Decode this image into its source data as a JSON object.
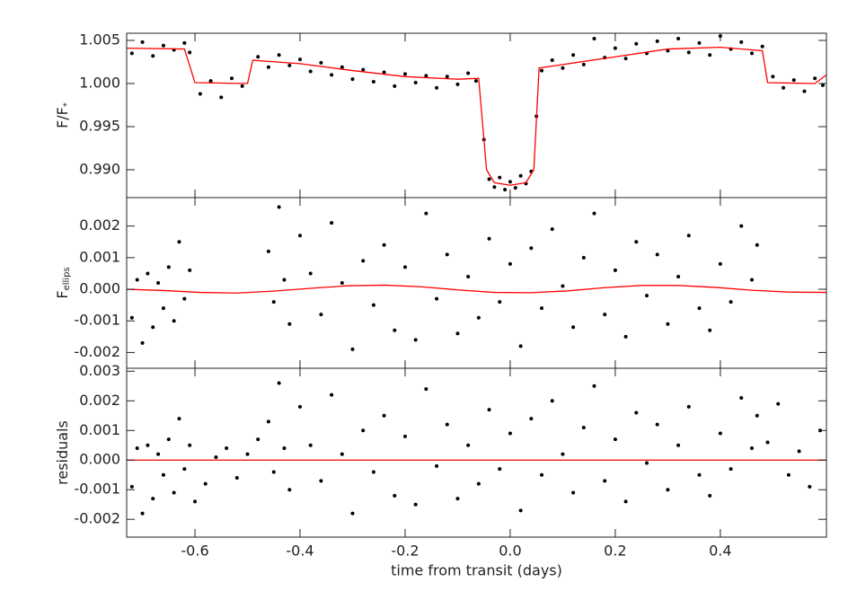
{
  "chart_data": [
    {
      "type": "scatter",
      "ylabel": "F/F",
      "ylabel_sub": "*",
      "xlim": [
        -0.73,
        0.602
      ],
      "ylim": [
        0.98677,
        1.00583
      ],
      "yticks": [
        1.005,
        {
          "value": 1,
          "label": "1.000"
        },
        0.995,
        {
          "value": 0.99,
          "label": "0.990"
        }
      ],
      "series": [
        {
          "style": "points",
          "color": "#000000",
          "x": [
            -0.72,
            -0.7,
            -0.68,
            -0.66,
            -0.64,
            -0.62,
            -0.61,
            -0.59,
            -0.57,
            -0.55,
            -0.53,
            -0.51,
            -0.48,
            -0.46,
            -0.44,
            -0.42,
            -0.4,
            -0.38,
            -0.36,
            -0.34,
            -0.32,
            -0.3,
            -0.28,
            -0.26,
            -0.24,
            -0.22,
            -0.2,
            -0.18,
            -0.16,
            -0.14,
            -0.12,
            -0.1,
            -0.08,
            -0.065,
            -0.05,
            -0.04,
            -0.03,
            -0.02,
            -0.01,
            0.0,
            0.01,
            0.02,
            0.03,
            0.04,
            0.05,
            0.06,
            0.08,
            0.1,
            0.12,
            0.14,
            0.16,
            0.18,
            0.2,
            0.22,
            0.24,
            0.26,
            0.28,
            0.3,
            0.32,
            0.34,
            0.36,
            0.38,
            0.4,
            0.42,
            0.44,
            0.46,
            0.48,
            0.5,
            0.52,
            0.54,
            0.56,
            0.58,
            0.595
          ],
          "values": [
            1.0035,
            1.0048,
            1.0032,
            1.0044,
            1.0039,
            1.0047,
            1.0036,
            0.9988,
            1.0003,
            0.9984,
            1.0006,
            0.9997,
            1.0031,
            1.0019,
            1.0033,
            1.0021,
            1.0028,
            1.0014,
            1.0024,
            1.001,
            1.0019,
            1.0005,
            1.0016,
            1.0002,
            1.0013,
            0.9997,
            1.0011,
            1.0001,
            1.0009,
            0.9995,
            1.0008,
            0.9999,
            1.0012,
            1.0003,
            0.9935,
            0.9889,
            0.988,
            0.9891,
            0.9877,
            0.9886,
            0.9879,
            0.9893,
            0.9884,
            0.9898,
            0.9962,
            1.0015,
            1.0027,
            1.0018,
            1.0033,
            1.0022,
            1.0052,
            1.003,
            1.0041,
            1.0029,
            1.0046,
            1.0035,
            1.0049,
            1.0038,
            1.0052,
            1.0036,
            1.0047,
            1.0033,
            1.0055,
            1.004,
            1.0048,
            1.0035,
            1.0043,
            1.0008,
            0.9995,
            1.0004,
            0.9991,
            1.0006,
            0.9998
          ]
        },
        {
          "style": "line",
          "color": "#ff0000",
          "x": [
            -0.73,
            -0.62,
            -0.6,
            -0.5,
            -0.49,
            -0.4,
            -0.3,
            -0.2,
            -0.1,
            -0.06,
            -0.045,
            -0.03,
            0.0,
            0.03,
            0.045,
            0.055,
            0.1,
            0.2,
            0.3,
            0.4,
            0.48,
            0.49,
            0.58,
            0.602
          ],
          "values": [
            1.0041,
            1.004,
            1.0001,
            1.0,
            1.0027,
            1.0023,
            1.0015,
            1.0008,
            1.0005,
            1.0006,
            0.99,
            0.9885,
            0.9882,
            0.9885,
            0.99,
            1.0018,
            1.0022,
            1.0031,
            1.004,
            1.0042,
            1.0038,
            1.0001,
            1.0,
            1.001
          ]
        }
      ]
    },
    {
      "type": "scatter",
      "ylabel": "F",
      "ylabel_sub": "ellips",
      "xlim": [
        -0.73,
        0.602
      ],
      "ylim": [
        -0.0025,
        0.0029
      ],
      "yticks": [
        0.002,
        0.001,
        {
          "value": 0,
          "label": "0.000"
        },
        -0.001,
        -0.002
      ],
      "series": [
        {
          "style": "points",
          "color": "#000000",
          "x": [
            -0.72,
            -0.71,
            -0.7,
            -0.69,
            -0.68,
            -0.67,
            -0.66,
            -0.65,
            -0.64,
            -0.63,
            -0.62,
            -0.61,
            -0.46,
            -0.45,
            -0.44,
            -0.43,
            -0.42,
            -0.4,
            -0.38,
            -0.36,
            -0.34,
            -0.32,
            -0.3,
            -0.28,
            -0.26,
            -0.24,
            -0.22,
            -0.2,
            -0.18,
            -0.16,
            -0.14,
            -0.12,
            -0.1,
            -0.08,
            -0.06,
            -0.04,
            -0.02,
            0.0,
            0.02,
            0.04,
            0.06,
            0.08,
            0.1,
            0.12,
            0.14,
            0.16,
            0.18,
            0.2,
            0.22,
            0.24,
            0.26,
            0.28,
            0.3,
            0.32,
            0.34,
            0.36,
            0.38,
            0.4,
            0.42,
            0.44,
            0.46,
            0.47
          ],
          "values": [
            -0.0009,
            0.0003,
            -0.0017,
            0.0005,
            -0.0012,
            0.0002,
            -0.0006,
            0.0007,
            -0.001,
            0.0015,
            -0.0003,
            0.0006,
            0.0012,
            -0.0004,
            0.0026,
            0.0003,
            -0.0011,
            0.0017,
            0.0005,
            -0.0008,
            0.0021,
            0.0002,
            -0.0019,
            0.0009,
            -0.0005,
            0.0014,
            -0.0013,
            0.0007,
            -0.0016,
            0.0024,
            -0.0003,
            0.0011,
            -0.0014,
            0.0004,
            -0.0009,
            0.0016,
            -0.0004,
            0.0008,
            -0.0018,
            0.0013,
            -0.0006,
            0.0019,
            0.0001,
            -0.0012,
            0.001,
            0.0024,
            -0.0008,
            0.0006,
            -0.0015,
            0.0015,
            -0.0002,
            0.0011,
            -0.0011,
            0.0004,
            0.0017,
            -0.0006,
            -0.0013,
            0.0008,
            -0.0004,
            0.002,
            0.0003,
            0.0014
          ]
        },
        {
          "style": "line",
          "color": "#ff0000",
          "x": [
            -0.73,
            -0.66,
            -0.59,
            -0.52,
            -0.45,
            -0.38,
            -0.31,
            -0.24,
            -0.17,
            -0.1,
            -0.03,
            0.04,
            0.11,
            0.18,
            0.25,
            0.32,
            0.39,
            0.46,
            0.53,
            0.602
          ],
          "values": [
            0.0,
            -4e-05,
            -0.0001,
            -0.00012,
            -6e-05,
            3e-05,
            0.00011,
            0.00013,
            8e-05,
            -2e-05,
            -0.0001,
            -0.00011,
            -5e-05,
            5e-05,
            0.00012,
            0.00012,
            6e-05,
            -3e-05,
            -9e-05,
            -0.0001
          ]
        }
      ]
    },
    {
      "type": "scatter",
      "ylabel": "residuals",
      "xlabel": "time from transit (days)",
      "xlim": [
        -0.73,
        0.602
      ],
      "ylim": [
        -0.0026,
        0.0031
      ],
      "xticks": [
        -0.6,
        -0.4,
        -0.2,
        {
          "value": 0,
          "label": "0.0"
        },
        0.2,
        0.4
      ],
      "yticks": [
        0.003,
        0.002,
        0.001,
        {
          "value": 0,
          "label": "0.000"
        },
        -0.001,
        -0.002
      ],
      "series": [
        {
          "style": "points",
          "color": "#000000",
          "x": [
            -0.72,
            -0.71,
            -0.7,
            -0.69,
            -0.68,
            -0.67,
            -0.66,
            -0.65,
            -0.64,
            -0.63,
            -0.62,
            -0.61,
            -0.6,
            -0.58,
            -0.56,
            -0.54,
            -0.52,
            -0.5,
            -0.48,
            -0.46,
            -0.45,
            -0.44,
            -0.43,
            -0.42,
            -0.4,
            -0.38,
            -0.36,
            -0.34,
            -0.32,
            -0.3,
            -0.28,
            -0.26,
            -0.24,
            -0.22,
            -0.2,
            -0.18,
            -0.16,
            -0.14,
            -0.12,
            -0.1,
            -0.08,
            -0.06,
            -0.04,
            -0.02,
            0.0,
            0.02,
            0.04,
            0.06,
            0.08,
            0.1,
            0.12,
            0.14,
            0.16,
            0.18,
            0.2,
            0.22,
            0.24,
            0.26,
            0.28,
            0.3,
            0.32,
            0.34,
            0.36,
            0.38,
            0.4,
            0.42,
            0.44,
            0.46,
            0.47,
            0.49,
            0.51,
            0.53,
            0.55,
            0.57,
            0.59
          ],
          "values": [
            -0.0009,
            0.0004,
            -0.0018,
            0.0005,
            -0.0013,
            0.0002,
            -0.0005,
            0.0007,
            -0.0011,
            0.0014,
            -0.0003,
            0.0005,
            -0.0014,
            -0.0008,
            0.0001,
            0.0004,
            -0.0006,
            0.0002,
            0.0007,
            0.0013,
            -0.0004,
            0.0026,
            0.0004,
            -0.001,
            0.0018,
            0.0005,
            -0.0007,
            0.0022,
            0.0002,
            -0.0018,
            0.001,
            -0.0004,
            0.0015,
            -0.0012,
            0.0008,
            -0.0015,
            0.0024,
            -0.0002,
            0.0012,
            -0.0013,
            0.0005,
            -0.0008,
            0.0017,
            -0.0003,
            0.0009,
            -0.0017,
            0.0014,
            -0.0005,
            0.002,
            0.0002,
            -0.0011,
            0.0011,
            0.0025,
            -0.0007,
            0.0007,
            -0.0014,
            0.0016,
            -0.0001,
            0.0012,
            -0.001,
            0.0005,
            0.0018,
            -0.0005,
            -0.0012,
            0.0009,
            -0.0003,
            0.0021,
            0.0004,
            0.0015,
            0.0006,
            0.0019,
            -0.0005,
            0.0003,
            -0.0009,
            0.001
          ]
        },
        {
          "style": "line",
          "color": "#ff0000",
          "x": [
            -0.73,
            0.602
          ],
          "values": [
            0,
            0
          ]
        }
      ]
    }
  ]
}
